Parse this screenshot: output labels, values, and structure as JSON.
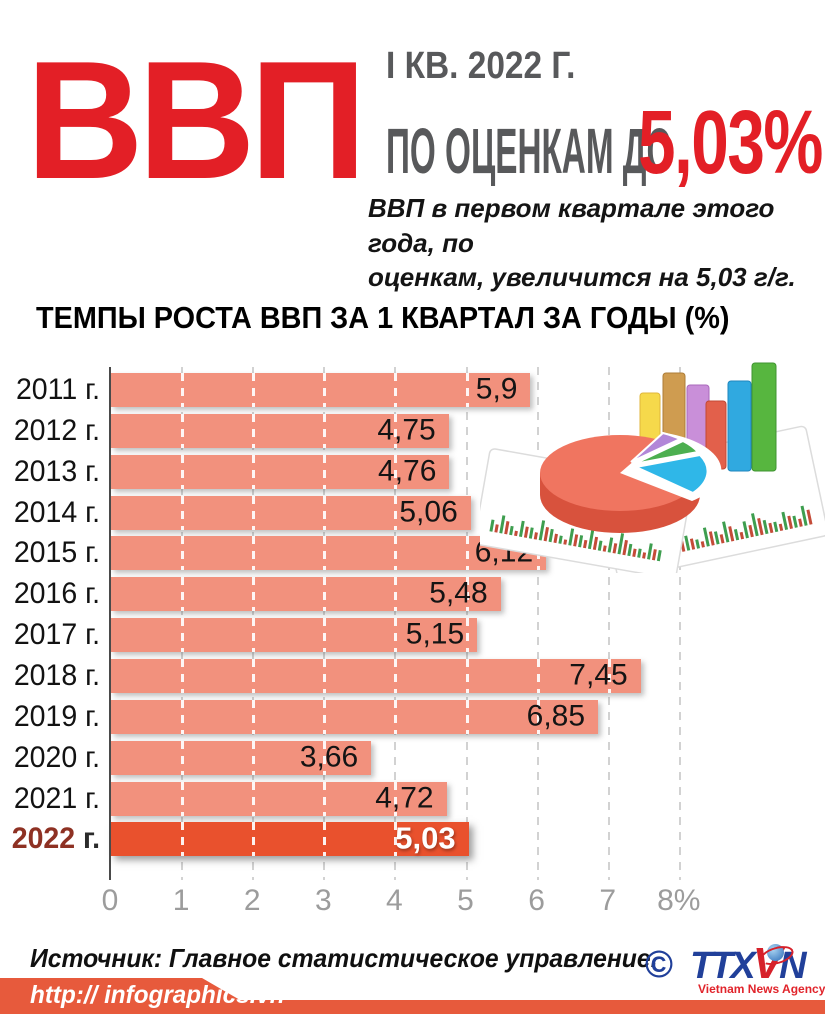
{
  "header": {
    "title": "ВВП",
    "period": "I КВ. 2022 Г.",
    "estimate_prefix": "ПО ОЦЕНКАМ ДО",
    "estimate_value": "5,03%",
    "subtitle": "ВВП в первом квартале этого года, по\nоценкам, увеличится на 5,03 г/г."
  },
  "chart_data": {
    "type": "bar",
    "orientation": "horizontal",
    "title": "ТЕМПЫ РОСТА ВВП ЗА 1 КВАРТАЛ ЗА ГОДЫ (%)",
    "categories": [
      "2011",
      "2012",
      "2013",
      "2014",
      "2015",
      "2016",
      "2017",
      "2018",
      "2019",
      "2020",
      "2021",
      "2022"
    ],
    "category_suffix": " г.",
    "values": [
      5.9,
      4.75,
      4.76,
      5.06,
      6.12,
      5.48,
      5.15,
      7.45,
      6.85,
      3.66,
      4.72,
      5.03
    ],
    "value_labels": [
      "5,9",
      "4,75",
      "4,76",
      "5,06",
      "6,12",
      "5,48",
      "5,15",
      "7,45",
      "6,85",
      "3,66",
      "4,72",
      "5,03"
    ],
    "x_ticks": [
      "0",
      "1",
      "2",
      "3",
      "4",
      "5",
      "6",
      "7",
      "8%"
    ],
    "xlim": [
      0,
      8
    ],
    "grid": "vertical-dashed",
    "legend": "none",
    "highlight_index": 11,
    "bar_color": "#F2917D",
    "highlight_color": "#E9512D"
  },
  "source": {
    "text": "Источник: Главное статистическое управление."
  },
  "footer": {
    "url": "http:// infographics.vn",
    "copyright": "©",
    "logo": {
      "ttx": "TTX",
      "v": "V",
      "n": "N",
      "caption": "Vietnam News Agency"
    }
  },
  "colors": {
    "accent_red": "#E31F26",
    "dark_gray": "#58595B",
    "bar_salmon": "#F2917D",
    "bar_highlight": "#E9512D",
    "highlight_year_red": "#8E3123",
    "footer_orange": "#E75A3C",
    "logo_blue": "#21409A",
    "logo_red": "#D6212A",
    "tick_gray": "#9C9C9C"
  }
}
